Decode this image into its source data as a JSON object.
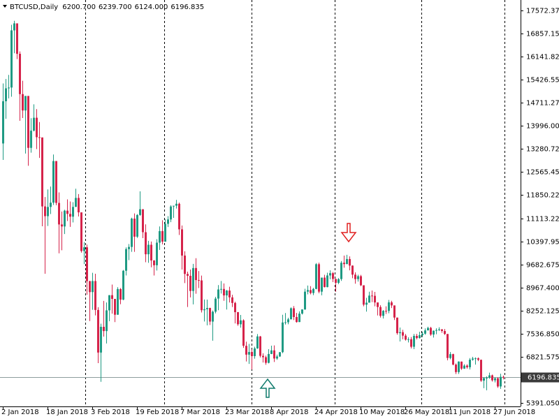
{
  "chart_data": {
    "type": "candlestick",
    "title": "BTCUSD,Daily",
    "header_labels": [
      "6200.700",
      "6239.700",
      "6124.000",
      "6196.835"
    ],
    "up_color": "#1f9a83",
    "down_color": "#d5234a",
    "bid": 6196.835,
    "ylim": [
      5283,
      17897
    ],
    "yticks": [
      17572.375,
      {
        "value": 16857.15,
        "label": "16857.150"
      },
      16141.825,
      {
        "value": 15426.55,
        "label": "15426.550"
      },
      14711.275,
      {
        "value": 13996,
        "label": "13996.000"
      },
      13280.725,
      {
        "value": 12565.45,
        "label": "12565.450"
      },
      11850.225,
      11113.225,
      {
        "value": 10397.95,
        "label": "10397.950"
      },
      9682.675,
      {
        "value": 8967.4,
        "label": "8967.400"
      },
      8252.125,
      {
        "value": 7536.85,
        "label": "7536.850"
      },
      6821.575,
      {
        "value": 6106.3,
        "label": "6106.300"
      },
      {
        "value": 5391.05,
        "label": "5391.050"
      }
    ],
    "categories": [
      "2 Jan 2018",
      null,
      null,
      null,
      null,
      null,
      null,
      null,
      null,
      null,
      null,
      null,
      null,
      null,
      null,
      null,
      "18 Jan 2018",
      null,
      null,
      null,
      null,
      null,
      null,
      null,
      null,
      null,
      null,
      null,
      null,
      null,
      null,
      null,
      "3 Feb 2018",
      null,
      null,
      null,
      null,
      null,
      null,
      null,
      null,
      null,
      null,
      null,
      null,
      null,
      null,
      null,
      "19 Feb 2018",
      null,
      null,
      null,
      null,
      null,
      null,
      null,
      null,
      null,
      null,
      null,
      null,
      null,
      null,
      null,
      "7 Mar 2018",
      null,
      null,
      null,
      null,
      null,
      null,
      null,
      null,
      null,
      null,
      null,
      null,
      null,
      null,
      null,
      "23 Mar 2018",
      null,
      null,
      null,
      null,
      null,
      null,
      null,
      null,
      null,
      null,
      null,
      null,
      null,
      null,
      null,
      "8 Apr 2018",
      null,
      null,
      null,
      null,
      null,
      null,
      null,
      null,
      null,
      null,
      null,
      null,
      null,
      null,
      null,
      "24 Apr 2018",
      null,
      null,
      null,
      null,
      null,
      null,
      null,
      null,
      null,
      null,
      null,
      null,
      null,
      null,
      null,
      "10 May 2018",
      null,
      null,
      null,
      null,
      null,
      null,
      null,
      null,
      null,
      null,
      null,
      null,
      null,
      null,
      null,
      "26 May 2018",
      null,
      null,
      null,
      null,
      null,
      null,
      null,
      null,
      null,
      null,
      null,
      null,
      null,
      null,
      null,
      "11 Jun 2018",
      null,
      null,
      null,
      null,
      null,
      null,
      null,
      null,
      null,
      null,
      null,
      null,
      null,
      null,
      null,
      "27 Jun 2018",
      null,
      null,
      null
    ],
    "open": [
      13444,
      14754,
      15156,
      15180,
      16954,
      17172,
      16228,
      14976,
      14468,
      14919,
      13308,
      13841,
      14243,
      13638,
      13631,
      11490,
      11188,
      11474,
      11607,
      12899,
      11600,
      10931,
      10868,
      11359,
      11259,
      11172,
      11475,
      11755,
      11306,
      10106,
      10221,
      9171,
      8831,
      9175,
      8277,
      6955,
      7754,
      7621,
      8265,
      8736,
      8621,
      8129,
      8926,
      8598,
      9494,
      10166,
      10233,
      11112,
      10551,
      11225,
      11403,
      10690,
      10005,
      10301,
      9813,
      9664,
      10366,
      10725,
      10397,
      10951,
      11086,
      11489,
      11512,
      11573,
      10779,
      9965,
      9395,
      9337,
      8866,
      9578,
      9205,
      9194,
      8269,
      8300,
      8338,
      7916,
      8223,
      8630,
      8913,
      8929,
      8728,
      8879,
      8668,
      8495,
      8209,
      7833,
      7954,
      7165,
      6890,
      6973,
      6844,
      7083,
      7456,
      6853,
      6811,
      6636,
      6911,
      7023,
      6770,
      6834,
      6968,
      7889,
      7895,
      7986,
      8329,
      8058,
      7902,
      8163,
      8294,
      8845,
      8895,
      8802,
      8930,
      9697,
      8845,
      9281,
      8987,
      9348,
      9419,
      9240,
      9119,
      9235,
      9743,
      9700,
      9858,
      9654,
      9373,
      9234,
      9325,
      9043,
      8441,
      8504,
      8723,
      8716,
      8510,
      8368,
      8094,
      8250,
      8247,
      8513,
      8418,
      8041,
      7557,
      7587,
      7480,
      7355,
      7368,
      7135,
      7472,
      7406,
      7494,
      7541,
      7643,
      7720,
      7514,
      7633,
      7653,
      7678,
      7624,
      7531,
      6786,
      6906,
      6582,
      6349,
      6675,
      6456,
      6550,
      6499,
      6734,
      6769,
      6776,
      6730,
      6083,
      6162,
      6174,
      6248,
      6094,
      6157,
      5903,
      6200.7
    ],
    "high": [
      15306,
      15444,
      15572,
      17127,
      17253,
      17172,
      16302,
      15390,
      14919,
      14919,
      14229,
      14659,
      14511,
      14109,
      13631,
      11783,
      12018,
      12107,
      13103,
      12899,
      11926,
      11332,
      11388,
      11708,
      11644,
      11622,
      12040,
      11875,
      11306,
      10381,
      10307,
      9183,
      9430,
      9400,
      8364,
      7851,
      8558,
      8510,
      8737,
      9065,
      8621,
      8985,
      8958,
      9518,
      10219,
      10324,
      11139,
      11274,
      11250,
      11958,
      11403,
      10935,
      10421,
      10401,
      9823,
      10475,
      10870,
      11062,
      11089,
      11190,
      11528,
      11512,
      11693,
      11610,
      10900,
      10100,
      9466,
      9531,
      9707,
      9884,
      9485,
      9343,
      8602,
      8600,
      8346,
      8261,
      8683,
      9050,
      9177,
      9100,
      8897,
      8996,
      8747,
      8534,
      8213,
      8122,
      7986,
      7292,
      7223,
      7049,
      7136,
      7530,
      7469,
      6933,
      6860,
      7061,
      7168,
      7178,
      6892,
      6968,
      8127,
      8183,
      8036,
      8358,
      8398,
      8185,
      8233,
      8294,
      8935,
      9036,
      9017,
      8961,
      9731,
      9745,
      9281,
      9368,
      9433,
      9507,
      9456,
      9240,
      9266,
      9796,
      9964,
      9990,
      9940,
      9662,
      9445,
      9370,
      9367,
      9043,
      8652,
      8843,
      8881,
      8837,
      8510,
      8422,
      8275,
      8390,
      8588,
      8560,
      8418,
      8041,
      7732,
      7662,
      7531,
      7430,
      7437,
      7531,
      7535,
      7600,
      7597,
      7704,
      7757,
      7754,
      7641,
      7709,
      7741,
      7678,
      7686,
      7531,
      6972,
      6920,
      6615,
      6685,
      6675,
      6591,
      6590,
      6784,
      6822,
      6806,
      6802,
      6739,
      6193,
      6214,
      6332,
      6271,
      6189,
      6187,
      6300,
      6239.7
    ],
    "low": [
      12934,
      14209,
      14844,
      14896,
      16245,
      16062,
      14148,
      14235,
      13131,
      12751,
      13158,
      13818,
      13269,
      12996,
      10876,
      9402,
      10884,
      11255,
      11536,
      11529,
      10036,
      10129,
      10633,
      11038,
      10856,
      10993,
      11475,
      11179,
      10057,
      9700,
      8750,
      7932,
      8283,
      8108,
      6626,
      6048,
      7450,
      7236,
      7931,
      8163,
      7899,
      8129,
      8455,
      8580,
      9347,
      9824,
      10080,
      10080,
      10513,
      11200,
      10507,
      9758,
      9740,
      9601,
      9347,
      9501,
      10140,
      10315,
      10394,
      10850,
      11002,
      11136,
      11426,
      10605,
      9532,
      9110,
      8370,
      8667,
      8450,
      8780,
      8957,
      8197,
      7920,
      7800,
      7812,
      7322,
      8170,
      8269,
      8785,
      8562,
      8290,
      8509,
      8370,
      7859,
      7787,
      7728,
      7101,
      6677,
      6602,
      6432,
      6765,
      7071,
      6803,
      6645,
      6575,
      6619,
      6905,
      6661,
      6731,
      6818,
      6936,
      7825,
      7831,
      7986,
      7963,
      7884,
      7901,
      8136,
      8280,
      8761,
      8762,
      8738,
      8918,
      8793,
      8732,
      8975,
      8977,
      9228,
      9140,
      8841,
      9078,
      9180,
      9589,
      9700,
      9507,
      9262,
      9093,
      9158,
      9017,
      8391,
      8226,
      8504,
      8520,
      8390,
      8106,
      8042,
      8010,
      8153,
      8175,
      8335,
      7965,
      7509,
      7298,
      7366,
      7326,
      7268,
      7083,
      7059,
      7364,
      7388,
      7436,
      7506,
      7643,
      7474,
      7421,
      7524,
      7626,
      7566,
      7501,
      6714,
      6747,
      6559,
      6289,
      6290,
      6418,
      6447,
      6455,
      6429,
      6702,
      6581,
      6690,
      6044,
      5850,
      5785,
      6143,
      6056,
      6028,
      5861,
      5827,
      6124
    ],
    "close": [
      14754,
      15156,
      15180,
      16954,
      17172,
      16228,
      14976,
      14468,
      14919,
      13308,
      13841,
      14243,
      13638,
      13631,
      11490,
      11188,
      11474,
      11607,
      12899,
      11600,
      10931,
      10868,
      11359,
      11259,
      11172,
      11475,
      11755,
      11306,
      10106,
      10221,
      9171,
      8831,
      9175,
      8277,
      6955,
      7754,
      7621,
      8265,
      8736,
      8621,
      8129,
      8926,
      8598,
      9494,
      10166,
      10233,
      11112,
      10551,
      11225,
      11403,
      10690,
      10005,
      10301,
      9813,
      9664,
      10366,
      10725,
      10397,
      10951,
      11086,
      11489,
      11512,
      11573,
      10779,
      9965,
      9395,
      9337,
      8866,
      9578,
      9205,
      9194,
      8269,
      8300,
      8338,
      7916,
      8223,
      8630,
      8913,
      8929,
      8728,
      8879,
      8668,
      8495,
      8209,
      7833,
      7954,
      7165,
      6890,
      6973,
      6844,
      7083,
      7456,
      6853,
      6811,
      6636,
      6911,
      7023,
      6770,
      6834,
      6968,
      7889,
      7895,
      7986,
      8329,
      8058,
      7902,
      8163,
      8294,
      8845,
      8895,
      8802,
      8930,
      9697,
      8845,
      9281,
      8987,
      9348,
      9419,
      9240,
      9119,
      9235,
      9743,
      9700,
      9858,
      9654,
      9373,
      9234,
      9325,
      9043,
      8441,
      8504,
      8723,
      8716,
      8510,
      8368,
      8094,
      8250,
      8247,
      8513,
      8418,
      8041,
      7557,
      7587,
      7480,
      7355,
      7368,
      7135,
      7472,
      7406,
      7494,
      7541,
      7643,
      7720,
      7514,
      7633,
      7653,
      7678,
      7624,
      7531,
      6786,
      6906,
      6582,
      6349,
      6675,
      6456,
      6550,
      6499,
      6734,
      6769,
      6776,
      6730,
      6083,
      6162,
      6174,
      6248,
      6094,
      6157,
      5903,
      6200.7,
      6196.835
    ]
  }
}
